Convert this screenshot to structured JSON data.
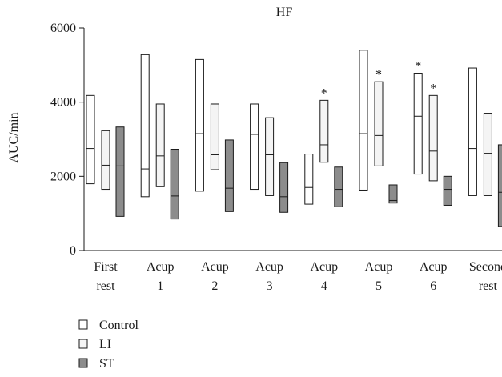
{
  "chart_data": {
    "type": "box",
    "title": "HF",
    "xlabel": "",
    "ylabel": "AUC/min",
    "ylim": [
      0,
      6000
    ],
    "yticks": [
      "0",
      "2000",
      "4000",
      "6000"
    ],
    "categories": [
      [
        "First",
        "rest"
      ],
      [
        "Acup",
        "1"
      ],
      [
        "Acup",
        "2"
      ],
      [
        "Acup",
        "3"
      ],
      [
        "Acup",
        "4"
      ],
      [
        "Acup",
        "5"
      ],
      [
        "Acup",
        "6"
      ],
      [
        "Second",
        "rest"
      ]
    ],
    "series": [
      {
        "name": "Control",
        "color": "#ffffff",
        "boxes": [
          {
            "low": 1800,
            "median": 2750,
            "high": 4180
          },
          {
            "low": 1450,
            "median": 2200,
            "high": 5280
          },
          {
            "low": 1600,
            "median": 3150,
            "high": 5150
          },
          {
            "low": 1650,
            "median": 3130,
            "high": 3950
          },
          {
            "low": 1250,
            "median": 1700,
            "high": 2600
          },
          {
            "low": 1630,
            "median": 3150,
            "high": 5400
          },
          {
            "low": 2060,
            "median": 3620,
            "high": 4780
          },
          {
            "low": 1480,
            "median": 2750,
            "high": 4920
          }
        ],
        "significant": [
          false,
          false,
          false,
          false,
          false,
          false,
          true,
          false
        ]
      },
      {
        "name": "LI",
        "color": "#f4f4f4",
        "boxes": [
          {
            "low": 1650,
            "median": 2300,
            "high": 3230
          },
          {
            "low": 1720,
            "median": 2550,
            "high": 3950
          },
          {
            "low": 2180,
            "median": 2580,
            "high": 3950
          },
          {
            "low": 1480,
            "median": 2580,
            "high": 3580
          },
          {
            "low": 2380,
            "median": 2850,
            "high": 4050
          },
          {
            "low": 2280,
            "median": 3100,
            "high": 4550
          },
          {
            "low": 1880,
            "median": 2680,
            "high": 4180
          },
          {
            "low": 1480,
            "median": 2620,
            "high": 3700
          }
        ],
        "significant": [
          false,
          false,
          false,
          false,
          true,
          true,
          true,
          false
        ]
      },
      {
        "name": "ST",
        "color": "#8c8c8c",
        "boxes": [
          {
            "low": 920,
            "median": 2280,
            "high": 3330
          },
          {
            "low": 850,
            "median": 1470,
            "high": 2730
          },
          {
            "low": 1050,
            "median": 1680,
            "high": 2980
          },
          {
            "low": 1030,
            "median": 1450,
            "high": 2370
          },
          {
            "low": 1180,
            "median": 1650,
            "high": 2250
          },
          {
            "low": 1280,
            "median": 1350,
            "high": 1770
          },
          {
            "low": 1220,
            "median": 1650,
            "high": 2000
          },
          {
            "low": 650,
            "median": 1570,
            "high": 2850
          }
        ],
        "significant": [
          false,
          false,
          false,
          false,
          false,
          false,
          false,
          false
        ]
      }
    ],
    "annotation_symbol": "*",
    "legend_position": "bottom-left",
    "grid": false
  }
}
